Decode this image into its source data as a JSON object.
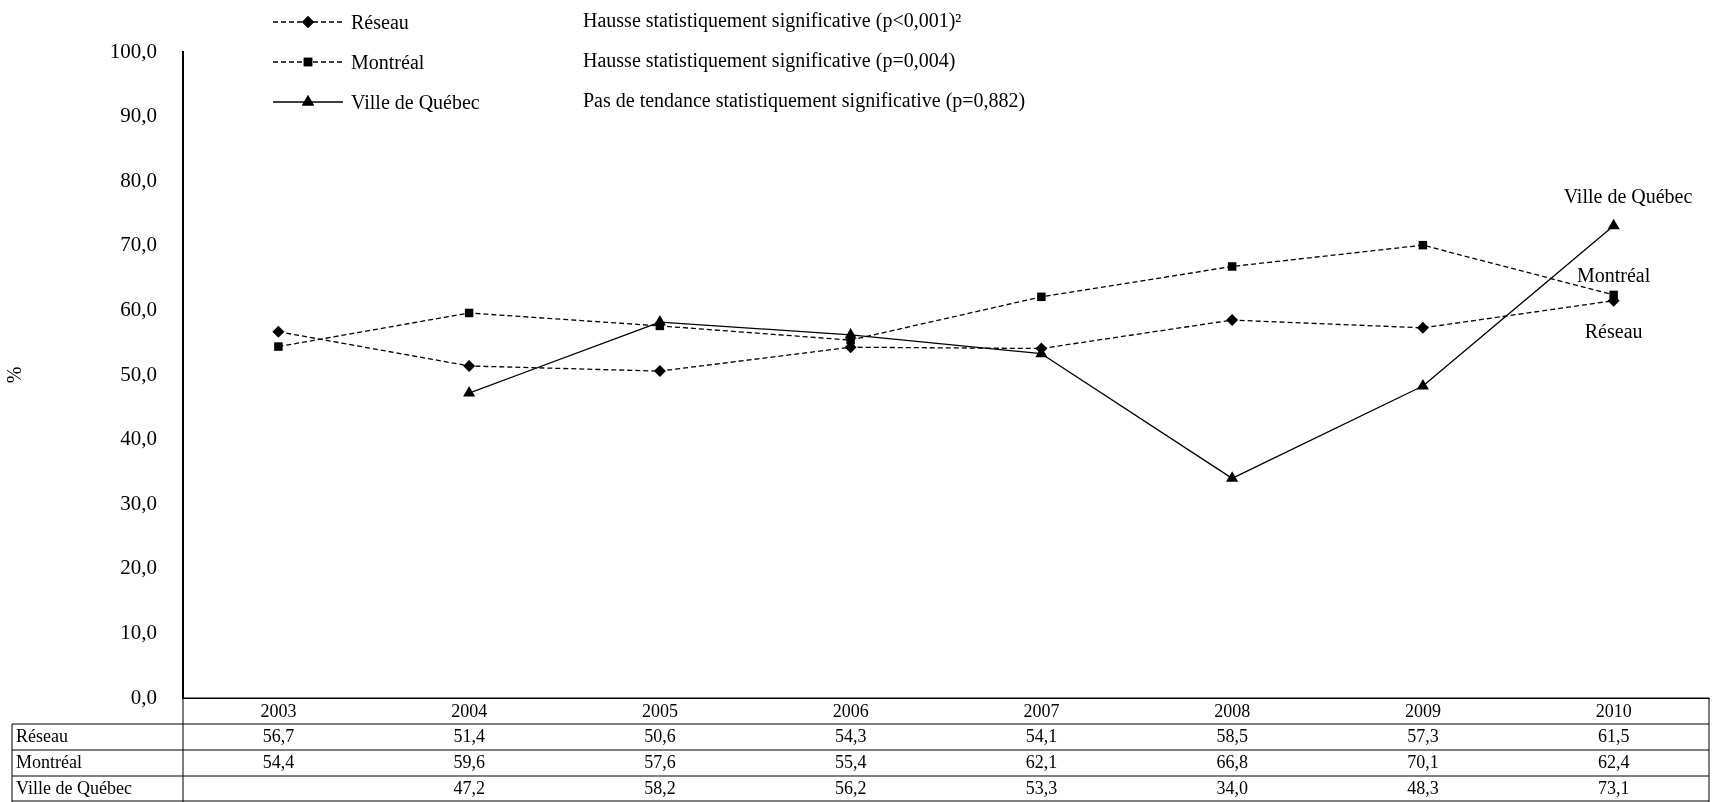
{
  "chart_data": {
    "type": "line",
    "ylabel": "%",
    "categories": [
      "2003",
      "2004",
      "2005",
      "2006",
      "2007",
      "2008",
      "2009",
      "2010"
    ],
    "series": [
      {
        "name": "Réseau",
        "color": "#000000",
        "marker": "diamond",
        "line_style": "dashed",
        "values": [
          56.7,
          51.4,
          50.6,
          54.3,
          54.1,
          58.5,
          57.3,
          61.5
        ],
        "value_labels": [
          "56,7",
          "51,4",
          "50,6",
          "54,3",
          "54,1",
          "58,5",
          "57,3",
          "61,5"
        ]
      },
      {
        "name": "Montréal",
        "color": "#000000",
        "marker": "square",
        "line_style": "dashed",
        "values": [
          54.4,
          59.6,
          57.6,
          55.4,
          62.1,
          66.8,
          70.1,
          62.4
        ],
        "value_labels": [
          "54,4",
          "59,6",
          "57,6",
          "55,4",
          "62,1",
          "66,8",
          "70,1",
          "62,4"
        ]
      },
      {
        "name": "Ville de Québec",
        "color": "#000000",
        "marker": "triangle",
        "line_style": "solid",
        "values": [
          null,
          47.2,
          58.2,
          56.2,
          53.3,
          34.0,
          48.3,
          73.1
        ],
        "value_labels": [
          null,
          "47,2",
          "58,2",
          "56,2",
          "53,3",
          "34,0",
          "48,3",
          "73,1"
        ]
      }
    ],
    "ylim": [
      0,
      100
    ],
    "yticks": [
      {
        "value": 0,
        "label": "0,0"
      },
      {
        "value": 10,
        "label": "10,0"
      },
      {
        "value": 20,
        "label": "20,0"
      },
      {
        "value": 30,
        "label": "30,0"
      },
      {
        "value": 40,
        "label": "40,0"
      },
      {
        "value": 50,
        "label": "50,0"
      },
      {
        "value": 60,
        "label": "60,0"
      },
      {
        "value": 70,
        "label": "70,0"
      },
      {
        "value": 80,
        "label": "80,0"
      },
      {
        "value": 90,
        "label": "90,0"
      },
      {
        "value": 100,
        "label": "100,0"
      }
    ],
    "annotations": [
      "Hausse statistiquement significative (p<0,001)²",
      "Hausse statistiquement significative (p=0,004)",
      "Pas de tendance statistiquement significative (p=0,882)"
    ],
    "legend": "top left",
    "grid": false
  }
}
